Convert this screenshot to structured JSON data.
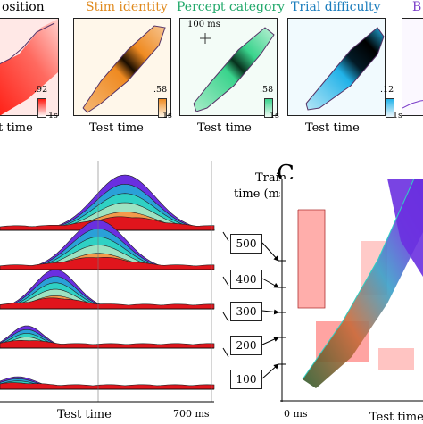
{
  "top_row": {
    "panels": [
      {
        "title": "osition",
        "title_color": "#c0141b",
        "cbar_max": ".92",
        "cbar_unit": "1s",
        "xlabel": "t time",
        "colors": [
          "#ffffff",
          "#ff2a1e"
        ]
      },
      {
        "title": "Stim identity",
        "title_color": "#e08a1e",
        "cbar_max": ".58",
        "cbar_unit": "1s",
        "xlabel": "Test time",
        "colors": [
          "#fff6e6",
          "#ef8a21",
          "#000000"
        ]
      },
      {
        "title": "Percept category",
        "title_color": "#21a86a",
        "cbar_max": ".58",
        "cbar_unit": "1s",
        "xlabel": "Test time",
        "scale_label": "100 ms",
        "colors": [
          "#f0fbf4",
          "#39d38c",
          "#000000"
        ]
      },
      {
        "title": "Trial difficulty",
        "title_color": "#1c7dbd",
        "cbar_max": ".12",
        "cbar_unit": "1s",
        "xlabel": "Test time",
        "colors": [
          "#eef8fd",
          "#21b2e8",
          "#000000"
        ]
      },
      {
        "title": "B",
        "title_color": "#7a3cc8"
      }
    ]
  },
  "panel_b": {
    "xlabel": "Test time",
    "xtick_end": "700 ms",
    "layer_colors": [
      "#e0151c",
      "#f39a4c",
      "#9ee3c2",
      "#2fd1c4",
      "#2aa0d8",
      "#6a2fe0"
    ]
  },
  "panel_c": {
    "letter": "C",
    "ylabel_line1": "Train",
    "ylabel_line2": "time (ms)",
    "xlabel": "Test time",
    "xtick_start": "0 ms",
    "train_labels": [
      "500",
      "400",
      "300",
      "200",
      "100"
    ]
  }
}
